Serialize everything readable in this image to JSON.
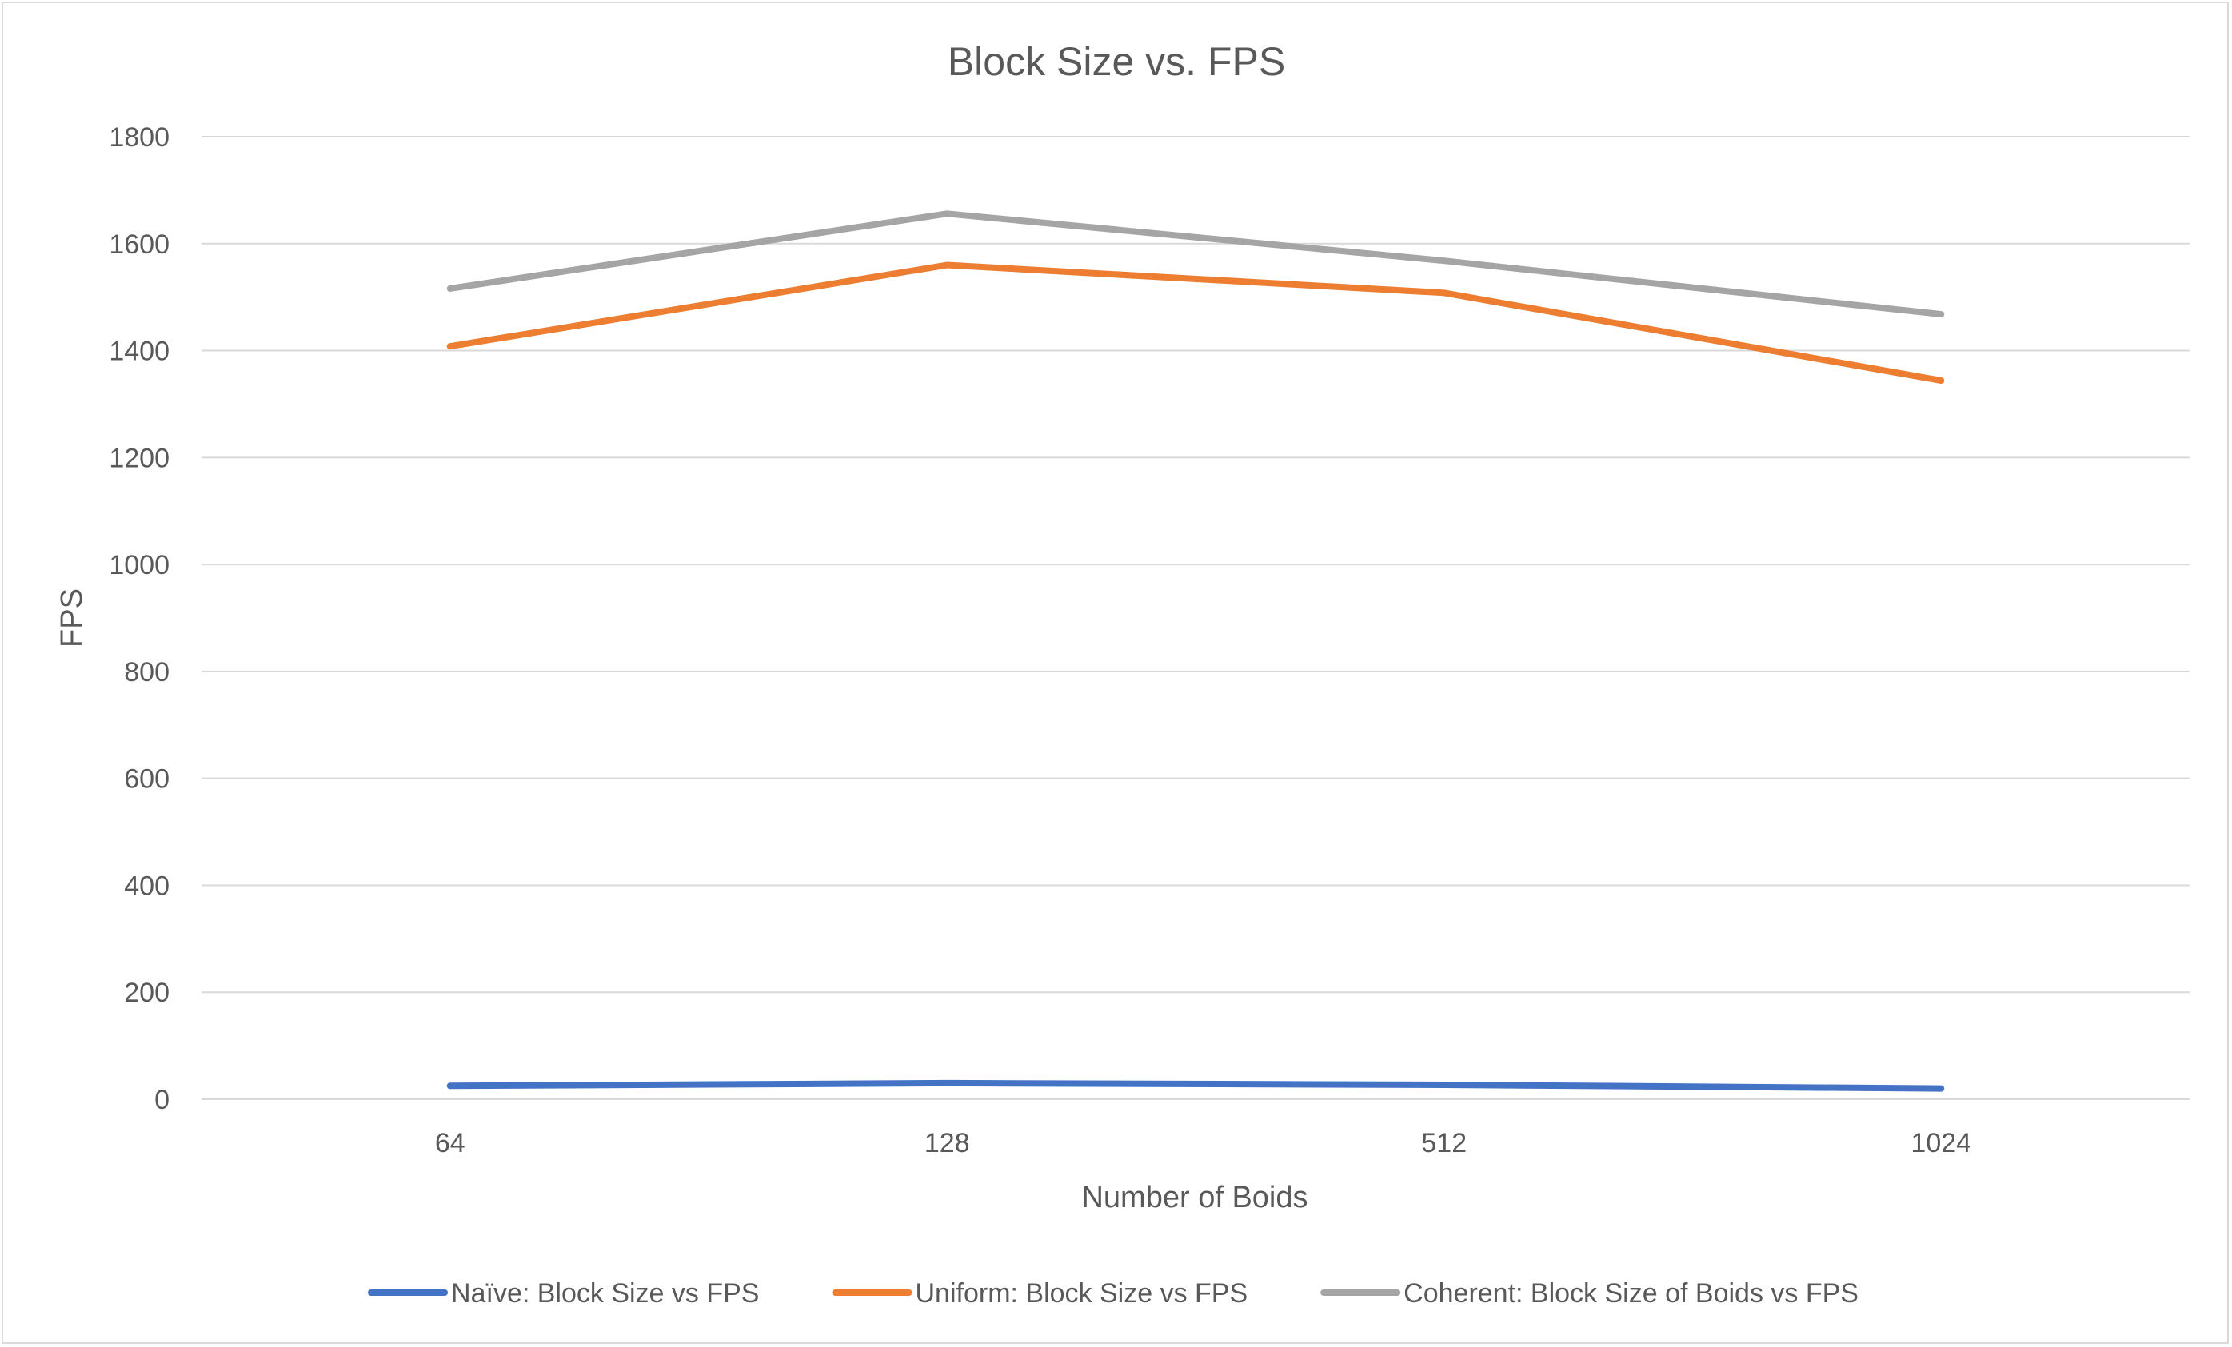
{
  "chart_data": {
    "type": "line",
    "title": "Block Size vs. FPS",
    "xlabel": "Number of Boids",
    "ylabel": "FPS",
    "categories": [
      "64",
      "128",
      "512",
      "1024"
    ],
    "ylim": [
      0,
      1800
    ],
    "yticks": [
      0,
      200,
      400,
      600,
      800,
      1000,
      1200,
      1400,
      1600,
      1800
    ],
    "grid": true,
    "legend_position": "bottom",
    "series": [
      {
        "name": "Naïve: Block Size vs FPS",
        "color": "#4472c4",
        "values": [
          25,
          30,
          27,
          20
        ]
      },
      {
        "name": "Uniform: Block Size vs FPS",
        "color": "#ed7d31",
        "values": [
          1408,
          1560,
          1508,
          1344
        ]
      },
      {
        "name": "Coherent: Block Size of Boids vs FPS",
        "color": "#a5a5a5",
        "values": [
          1516,
          1656,
          1568,
          1468
        ]
      }
    ]
  }
}
